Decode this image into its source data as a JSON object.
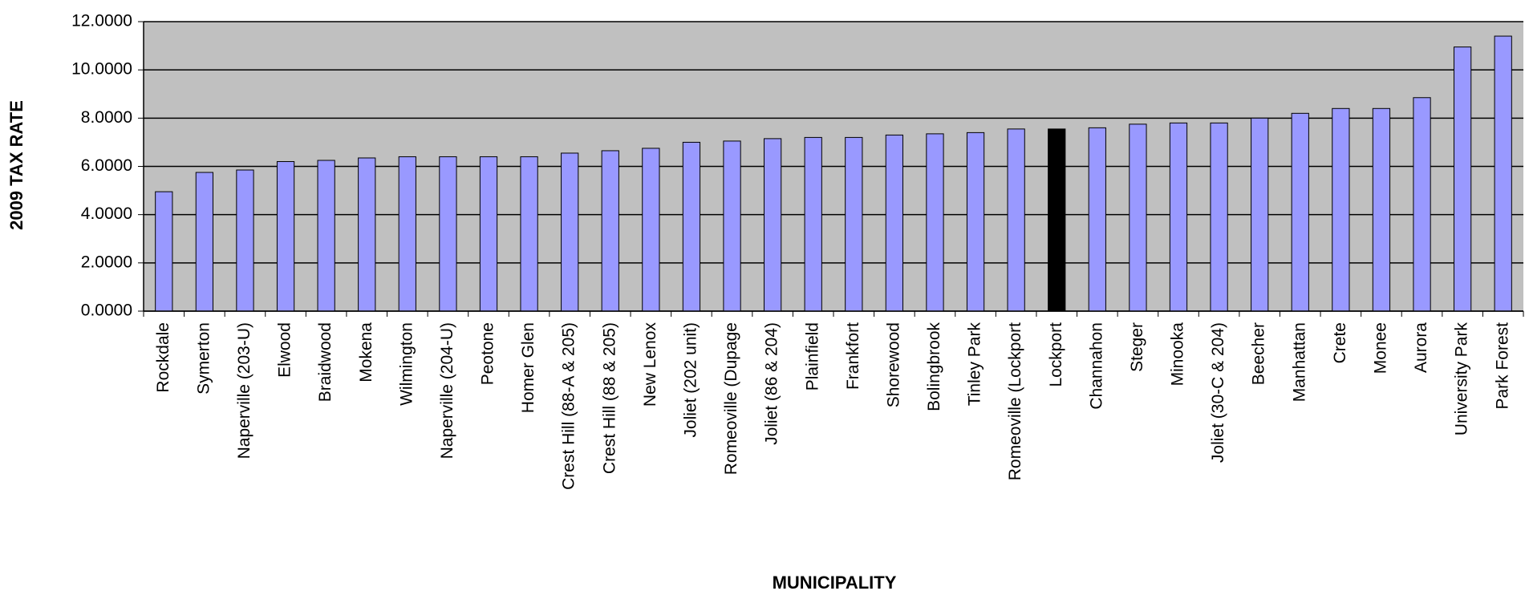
{
  "chart_data": {
    "type": "bar",
    "x_label": "MUNICIPALITY",
    "y_label": "2009 TAX RATE",
    "categories": [
      "Rockdale",
      "Symerton",
      "Naperville (203-U)",
      "Elwood",
      "Braidwood",
      "Mokena",
      "Wilmington",
      "Naperville (204-U)",
      "Peotone",
      "Homer Glen",
      "Crest Hill (88-A & 205)",
      "Crest Hill (88 & 205)",
      "New Lenox",
      "Joliet (202 unit)",
      "Romeoville (Dupage",
      "Joliet (86 & 204)",
      "Plainfield",
      "Frankfort",
      "Shorewood",
      "Bolingbrook",
      "Tinley Park",
      "Romeoville (Lockport",
      "Lockport",
      "Channahon",
      "Steger",
      "Minooka",
      "Joliet (30-C & 204)",
      "Beecher",
      "Manhattan",
      "Crete",
      "Monee",
      "Aurora",
      "University Park",
      "Park Forest"
    ],
    "values": [
      4.95,
      5.75,
      5.85,
      6.2,
      6.25,
      6.35,
      6.4,
      6.4,
      6.4,
      6.4,
      6.55,
      6.65,
      6.75,
      7.0,
      7.05,
      7.15,
      7.2,
      7.2,
      7.3,
      7.35,
      7.4,
      7.55,
      7.55,
      7.6,
      7.75,
      7.8,
      7.8,
      8.0,
      8.2,
      8.4,
      8.4,
      8.85,
      10.95,
      11.4
    ],
    "colors": [
      "#9999ff",
      "#9999ff",
      "#9999ff",
      "#9999ff",
      "#9999ff",
      "#9999ff",
      "#9999ff",
      "#9999ff",
      "#9999ff",
      "#9999ff",
      "#9999ff",
      "#9999ff",
      "#9999ff",
      "#9999ff",
      "#9999ff",
      "#9999ff",
      "#9999ff",
      "#9999ff",
      "#9999ff",
      "#9999ff",
      "#9999ff",
      "#9999ff",
      "#000000",
      "#9999ff",
      "#9999ff",
      "#9999ff",
      "#9999ff",
      "#9999ff",
      "#9999ff",
      "#9999ff",
      "#9999ff",
      "#9999ff",
      "#9999ff",
      "#9999ff"
    ],
    "plot_background": "#c0c0c0",
    "ylim": [
      0,
      12
    ],
    "yticks": [
      {
        "value": 0,
        "label": "0.0000"
      },
      {
        "value": 2,
        "label": "2.0000"
      },
      {
        "value": 4,
        "label": "4.0000"
      },
      {
        "value": 6,
        "label": "6.0000"
      },
      {
        "value": 8,
        "label": "8.0000"
      },
      {
        "value": 10,
        "label": "10.0000"
      },
      {
        "value": 12,
        "label": "12.0000"
      }
    ],
    "grid": true
  }
}
